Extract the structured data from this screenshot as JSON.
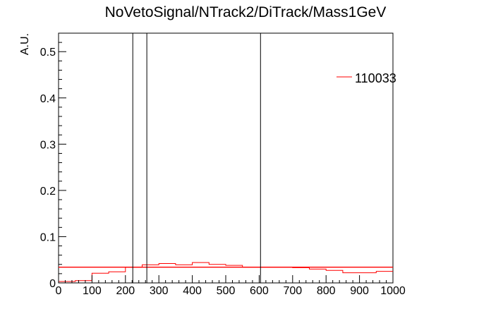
{
  "chart_data": {
    "type": "histogram",
    "title": "NoVetoSignal/NTrack2/DiTrack/Mass1GeV",
    "xlabel": "",
    "ylabel": "A.U.",
    "xlim": [
      0,
      1000
    ],
    "ylim": [
      0,
      0.54
    ],
    "x_ticks": [
      0,
      100,
      200,
      300,
      400,
      500,
      600,
      700,
      800,
      900,
      1000
    ],
    "x_tick_labels": [
      "0",
      "100",
      "200",
      "300",
      "400",
      "500",
      "600",
      "700",
      "800",
      "900",
      "1000"
    ],
    "y_ticks": [
      0,
      0.1,
      0.2,
      0.3,
      0.4,
      0.5
    ],
    "y_tick_labels": [
      "0",
      "0.1",
      "0.2",
      "0.3",
      "0.4",
      "0.5"
    ],
    "grid": false,
    "legend_position": "top-right",
    "series": [
      {
        "name": "110033",
        "color": "#ff0000",
        "bin_edges": [
          0,
          50,
          100,
          150,
          200,
          250,
          300,
          350,
          400,
          450,
          500,
          550,
          600,
          650,
          700,
          750,
          800,
          850,
          900,
          950,
          1000
        ],
        "values": [
          0.003,
          0.005,
          0.021,
          0.024,
          0.034,
          0.039,
          0.042,
          0.039,
          0.044,
          0.04,
          0.038,
          0.034,
          0.034,
          0.034,
          0.033,
          0.03,
          0.027,
          0.022,
          0.022,
          0.025
        ]
      }
    ],
    "reference_lines": {
      "horizontal": [
        {
          "y": 0.034,
          "x_range": [
            0,
            1000
          ],
          "color": "#ff0000"
        }
      ],
      "vertical": [
        {
          "x": 222,
          "color": "#000000"
        },
        {
          "x": 264,
          "color": "#000000"
        },
        {
          "x": 604,
          "color": "#000000"
        }
      ]
    }
  }
}
